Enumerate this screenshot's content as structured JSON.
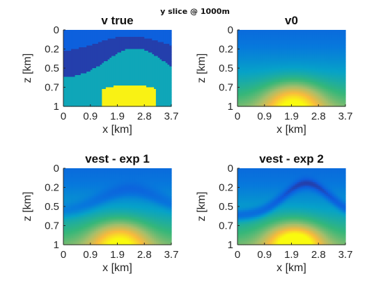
{
  "figure": {
    "suptitle": "y slice @ 1000m"
  },
  "colors": {
    "colormap": "parula",
    "axis": "#262626",
    "background": "#ffffff"
  },
  "chart_data": [
    {
      "type": "heatmap",
      "title": "v true",
      "xlabel": "x [km]",
      "ylabel": "z [km]",
      "xticks": [
        "0",
        "0.9",
        "1.9",
        "2.8",
        "3.7"
      ],
      "yticks": [
        "0",
        "0.2",
        "0.5",
        "0.7",
        "1"
      ],
      "xlim": [
        0,
        3.7
      ],
      "ylim": [
        0,
        1
      ],
      "y_axis_reversed": true,
      "model": "layered",
      "color_scale": "parula (blue = low velocity, yellow = high velocity)",
      "structure": "top: light-blue layer over dark-blue layer, anticline with crest near x=2.4 km; teal middle; yellow high-velocity body near the bottom centred near x=2.2 km"
    },
    {
      "type": "heatmap",
      "title": "v0",
      "xlabel": "x [km]",
      "ylabel": "z [km]",
      "xticks": [
        "0",
        "0.9",
        "1.9",
        "2.8",
        "3.7"
      ],
      "yticks": [
        "0",
        "0.2",
        "0.5",
        "0.7",
        "1"
      ],
      "xlim": [
        0,
        3.7
      ],
      "ylim": [
        0,
        1
      ],
      "y_axis_reversed": true,
      "model": "smooth",
      "color_scale": "parula",
      "structure": "smooth gradient from blue at top to yellow-orange at bottom centre near x=2.0 km"
    },
    {
      "type": "heatmap",
      "title": "vest - exp 1",
      "xlabel": "x [km]",
      "ylabel": "z [km]",
      "xticks": [
        "0",
        "0.9",
        "1.9",
        "2.8",
        "3.7"
      ],
      "yticks": [
        "0",
        "0.2",
        "0.5",
        "0.7",
        "1"
      ],
      "xlim": [
        0,
        3.7
      ],
      "ylim": [
        0,
        1
      ],
      "y_axis_reversed": true,
      "model": "exp1",
      "color_scale": "parula",
      "structure": "smooth background with a faint darker band along the anticline"
    },
    {
      "type": "heatmap",
      "title": "vest - exp 2",
      "xlabel": "x [km]",
      "ylabel": "z [km]",
      "xticks": [
        "0",
        "0.9",
        "1.9",
        "2.8",
        "3.7"
      ],
      "yticks": [
        "0",
        "0.2",
        "0.5",
        "0.7",
        "1"
      ],
      "xlim": [
        0,
        3.7
      ],
      "ylim": [
        0,
        1
      ],
      "y_axis_reversed": true,
      "model": "exp2",
      "color_scale": "parula",
      "structure": "darker band clearly following the anticline shape, high-velocity region near the bottom centre"
    }
  ]
}
